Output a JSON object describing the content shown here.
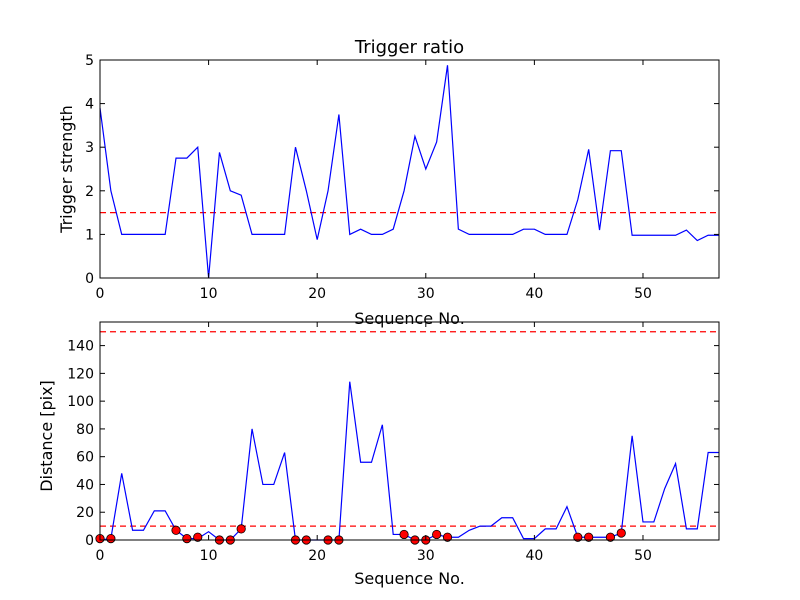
{
  "chart_data": [
    {
      "type": "line",
      "title": "Trigger ratio",
      "xlabel": "Sequence No.",
      "ylabel": "Trigger strength",
      "xlim": [
        0,
        57
      ],
      "ylim": [
        0,
        5
      ],
      "xticks": [
        0,
        10,
        20,
        30,
        40,
        50
      ],
      "yticks": [
        0,
        1,
        2,
        3,
        4,
        5
      ],
      "grid": false,
      "threshold": {
        "value": 1.5,
        "color": "#ff0000",
        "style": "dashed"
      },
      "series": [
        {
          "color": "#0000ff",
          "x": [
            0,
            1,
            2,
            3,
            4,
            5,
            6,
            7,
            8,
            9,
            10,
            11,
            12,
            13,
            14,
            15,
            16,
            17,
            18,
            19,
            20,
            21,
            22,
            23,
            24,
            25,
            26,
            27,
            28,
            29,
            30,
            31,
            32,
            33,
            34,
            35,
            36,
            37,
            38,
            39,
            40,
            41,
            42,
            43,
            44,
            45,
            46,
            47,
            48,
            49,
            50,
            51,
            52,
            53,
            54,
            55,
            56,
            57
          ],
          "y": [
            3.9,
            2.0,
            1.0,
            1.0,
            1.0,
            1.0,
            1.0,
            2.75,
            2.75,
            3.0,
            0.0,
            2.88,
            2.0,
            1.9,
            1.0,
            1.0,
            1.0,
            1.0,
            3.0,
            2.0,
            0.88,
            2.0,
            3.75,
            1.0,
            1.12,
            1.0,
            1.0,
            1.12,
            2.0,
            3.25,
            2.5,
            3.12,
            4.88,
            1.12,
            1.0,
            1.0,
            1.0,
            1.0,
            1.0,
            1.12,
            1.12,
            1.0,
            1.0,
            1.0,
            1.8,
            2.95,
            1.1,
            2.92,
            2.92,
            0.98,
            0.98,
            0.98,
            0.98,
            0.98,
            1.1,
            0.86,
            0.98,
            0.98
          ]
        }
      ]
    },
    {
      "type": "line",
      "title": "",
      "xlabel": "Sequence No.",
      "ylabel": "Distance [pix]",
      "xlim": [
        0,
        57
      ],
      "ylim": [
        0,
        157
      ],
      "xticks": [
        0,
        10,
        20,
        30,
        40,
        50
      ],
      "yticks": [
        0,
        20,
        40,
        60,
        80,
        100,
        120,
        140
      ],
      "grid": false,
      "thresholds": [
        {
          "value": 150,
          "color": "#ff0000",
          "style": "dashed"
        },
        {
          "value": 10,
          "color": "#ff0000",
          "style": "dashed"
        }
      ],
      "series": [
        {
          "color": "#0000ff",
          "x": [
            0,
            1,
            2,
            3,
            4,
            5,
            6,
            7,
            8,
            9,
            10,
            11,
            12,
            13,
            14,
            15,
            16,
            17,
            18,
            19,
            20,
            21,
            22,
            23,
            24,
            25,
            26,
            27,
            28,
            29,
            30,
            31,
            32,
            33,
            34,
            35,
            36,
            37,
            38,
            39,
            40,
            41,
            42,
            43,
            44,
            45,
            46,
            47,
            48,
            49,
            50,
            51,
            52,
            53,
            54,
            55,
            56,
            57
          ],
          "y": [
            0,
            1,
            48,
            7,
            7,
            21,
            21,
            7,
            1,
            1,
            6,
            0,
            0,
            8,
            80,
            40,
            40,
            63,
            0,
            0,
            0,
            0,
            0,
            114,
            56,
            56,
            83,
            4,
            4,
            0,
            0,
            4,
            2,
            2,
            7,
            10,
            10,
            16,
            16,
            1,
            1,
            8,
            8,
            24,
            2,
            2,
            2,
            2,
            5,
            75,
            13,
            13,
            37,
            55,
            8,
            8,
            63,
            63
          ]
        },
        {
          "type": "scatter",
          "color": "#ff0000",
          "x": [
            0,
            1,
            7,
            8,
            9,
            11,
            12,
            13,
            18,
            19,
            21,
            22,
            28,
            29,
            30,
            31,
            32,
            44,
            45,
            47,
            48
          ],
          "y": [
            1,
            1,
            7,
            1,
            2,
            0,
            0,
            8,
            0,
            0,
            0,
            0,
            4,
            0,
            0,
            4,
            2,
            2,
            2,
            2,
            5
          ]
        }
      ]
    }
  ]
}
